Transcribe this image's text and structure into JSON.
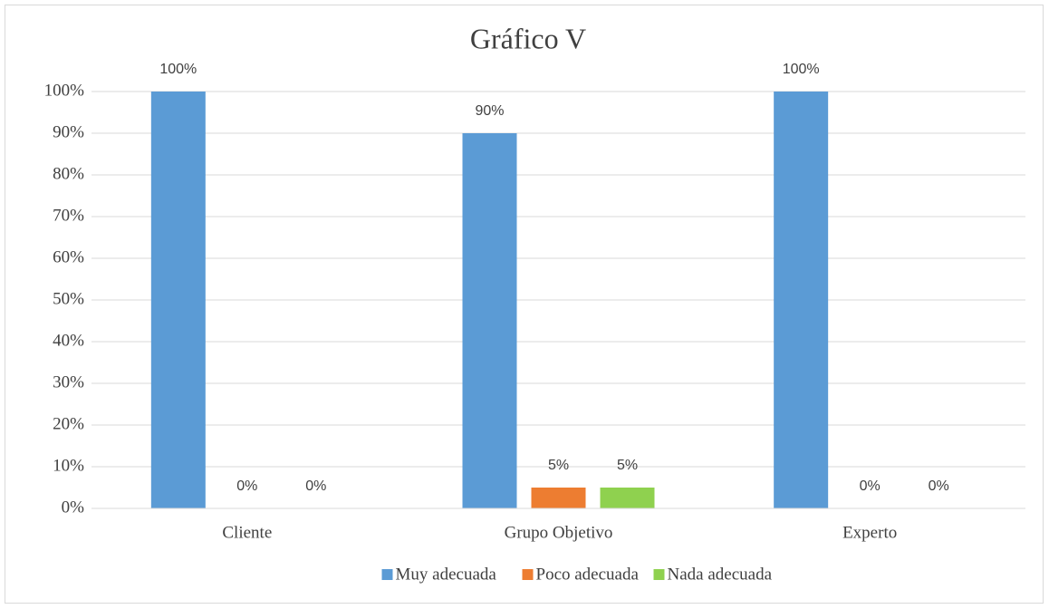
{
  "chart_data": {
    "type": "bar",
    "title": "Gráfico V",
    "categories": [
      "Cliente",
      "Grupo Objetivo",
      "Experto"
    ],
    "series": [
      {
        "name": "Muy adecuada",
        "color": "#5b9bd5",
        "values": [
          100,
          90,
          100
        ],
        "value_labels": [
          "100%",
          "90%",
          "100%"
        ]
      },
      {
        "name": "Poco adecuada",
        "color": "#ed7d31",
        "values": [
          0,
          5,
          0
        ],
        "value_labels": [
          "0%",
          "5%",
          "0%"
        ]
      },
      {
        "name": "Nada adecuada",
        "color": "#8fd14f",
        "values": [
          0,
          5,
          0
        ],
        "value_labels": [
          "0%",
          "5%",
          "0%"
        ]
      }
    ],
    "ylim": [
      0,
      100
    ],
    "yticks": [
      {
        "value": 0,
        "label": "0%"
      },
      {
        "value": 10,
        "label": "10%"
      },
      {
        "value": 20,
        "label": "20%"
      },
      {
        "value": 30,
        "label": "30%"
      },
      {
        "value": 40,
        "label": "40%"
      },
      {
        "value": 50,
        "label": "50%"
      },
      {
        "value": 60,
        "label": "60%"
      },
      {
        "value": 70,
        "label": "70%"
      },
      {
        "value": 80,
        "label": "80%"
      },
      {
        "value": 90,
        "label": "90%"
      },
      {
        "value": 100,
        "label": "100%"
      }
    ],
    "grid": true,
    "legend": "bottom"
  }
}
